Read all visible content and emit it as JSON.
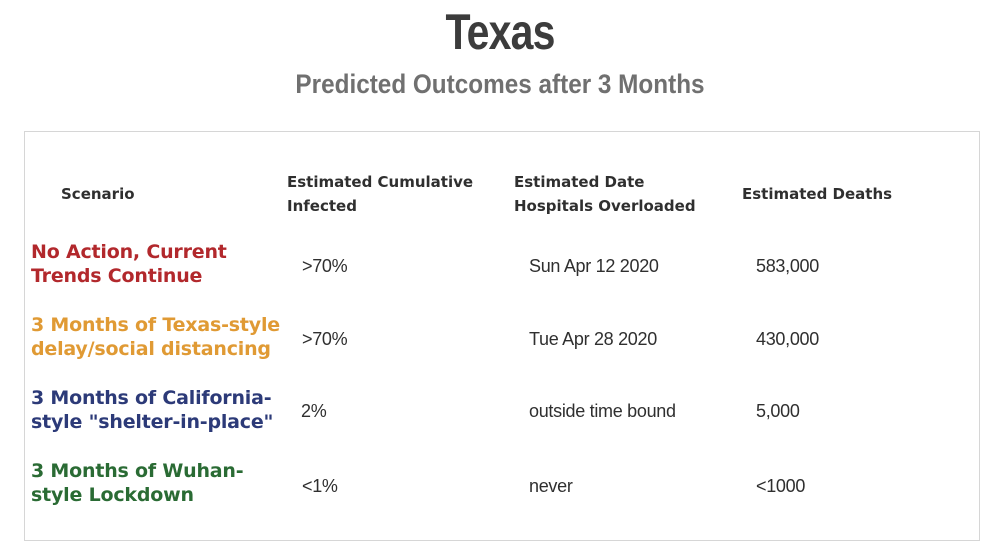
{
  "title": "Texas",
  "subtitle": "Predicted Outcomes after 3 Months",
  "table": {
    "headers": {
      "scenario": "Scenario",
      "infected_line1": "Estimated Cumulative",
      "infected_line2": "Infected",
      "date_line1": "Estimated Date",
      "date_line2": "Hospitals Overloaded",
      "deaths": "Estimated Deaths"
    },
    "rows": [
      {
        "scenario_line1": "No Action, Current",
        "scenario_line2": "Trends Continue",
        "color": "#b2282c",
        "infected": ">70%",
        "date": "Sun Apr 12 2020",
        "deaths": "583,000"
      },
      {
        "scenario_line1": "3 Months of Texas-style",
        "scenario_line2": "delay/social distancing",
        "color": "#e09a34",
        "infected": ">70%",
        "date": "Tue Apr 28 2020",
        "deaths": "430,000"
      },
      {
        "scenario_line1": "3 Months of California-",
        "scenario_line2": "style \"shelter-in-place\"",
        "color": "#2c3a78",
        "infected": "2%",
        "date": "outside time bound",
        "deaths": "5,000"
      },
      {
        "scenario_line1": "3 Months of Wuhan-",
        "scenario_line2": "style Lockdown",
        "color": "#2a6b34",
        "infected": "<1%",
        "date": "never",
        "deaths": "<1000"
      }
    ]
  }
}
